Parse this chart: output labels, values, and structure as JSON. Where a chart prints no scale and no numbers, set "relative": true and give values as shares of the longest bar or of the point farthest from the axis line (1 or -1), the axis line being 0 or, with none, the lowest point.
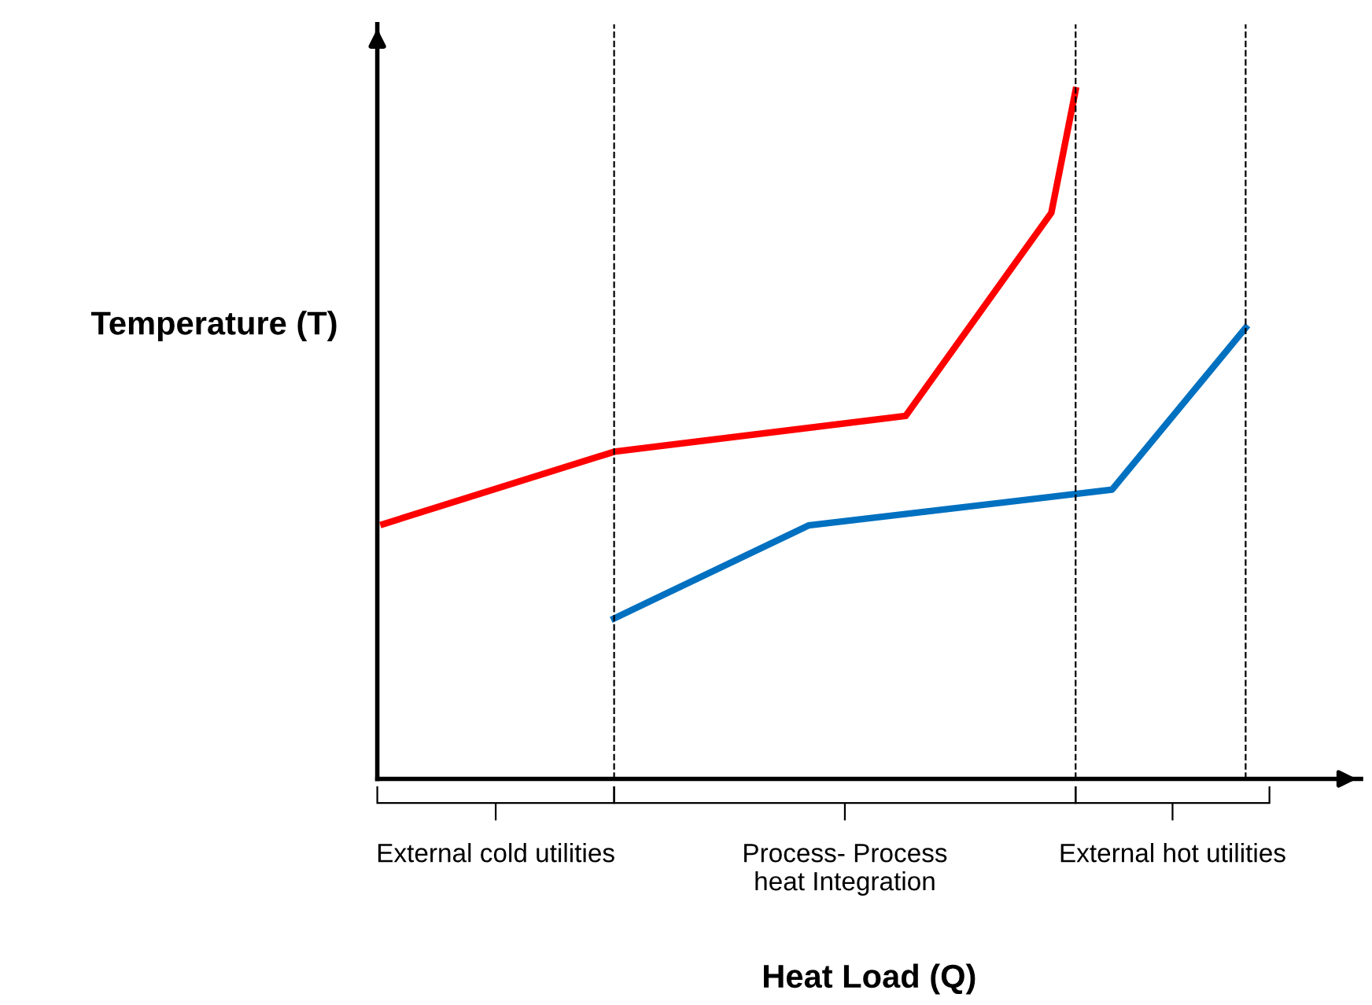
{
  "chart_data": {
    "type": "line",
    "relative": true,
    "ylabel": "Temperature (T)",
    "categories": [
      null,
      null,
      null,
      null,
      null,
      null,
      null,
      null,
      null,
      null,
      null,
      null,
      null,
      null,
      null,
      null,
      null,
      null,
      null,
      null,
      null,
      null,
      null,
      null,
      null,
      null,
      null,
      null,
      null,
      null,
      null,
      null,
      null,
      null,
      null,
      null,
      null,
      null,
      null,
      null,
      null,
      null,
      null,
      null,
      null,
      null,
      null,
      null,
      null,
      null,
      null,
      null,
      null,
      null,
      null,
      null,
      null,
      null,
      null,
      null,
      null,
      null,
      null,
      null,
      null,
      null,
      null,
      null,
      null,
      null,
      null,
      null,
      null,
      null,
      null,
      null,
      null,
      null,
      null,
      null,
      null
    ],
    "series": [
      {
        "color": "#ff0000",
        "values": [
          0.37,
          null,
          null,
          null,
          null,
          null,
          null,
          null,
          null,
          null,
          null,
          null,
          null,
          null,
          null,
          null,
          null,
          null,
          null,
          0.475,
          null,
          null,
          null,
          null,
          null,
          null,
          null,
          null,
          null,
          null,
          null,
          null,
          null,
          null,
          null,
          null,
          null,
          null,
          null,
          null,
          null,
          null,
          null,
          0.527,
          null,
          null,
          null,
          null,
          null,
          null,
          null,
          null,
          null,
          null,
          null,
          0.822,
          null,
          1.0,
          null,
          null,
          null,
          null,
          null,
          null,
          null,
          null,
          null,
          null,
          null,
          null,
          null,
          null,
          null,
          null,
          null,
          null,
          null,
          null,
          null,
          null,
          null
        ]
      },
      {
        "color": "#0070c0",
        "values": [
          null,
          null,
          null,
          null,
          null,
          null,
          null,
          null,
          null,
          null,
          null,
          null,
          null,
          null,
          null,
          null,
          null,
          null,
          null,
          0.233,
          null,
          null,
          null,
          null,
          null,
          null,
          null,
          null,
          null,
          null,
          null,
          null,
          null,
          null,
          null,
          0.368,
          null,
          null,
          null,
          null,
          null,
          null,
          null,
          null,
          null,
          null,
          null,
          null,
          null,
          null,
          null,
          null,
          null,
          null,
          null,
          null,
          null,
          null,
          null,
          null,
          0.42,
          null,
          null,
          null,
          null,
          null,
          null,
          null,
          null,
          null,
          null,
          0.655,
          null,
          null,
          null,
          null,
          null,
          null,
          null,
          null,
          null
        ]
      }
    ],
    "annotations": [
      "External cold utilities",
      "Process- Process\nheat Integration",
      "External hot utilities",
      "Heat Load (Q)"
    ],
    "grid": "x",
    "line_style": "solid"
  }
}
